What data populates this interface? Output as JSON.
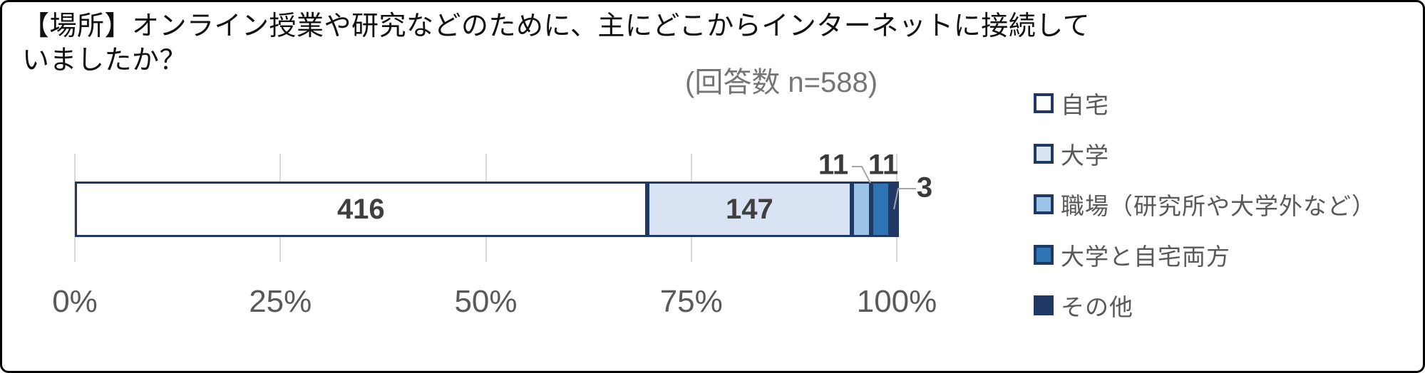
{
  "chart_data": {
    "type": "bar",
    "orientation": "horizontal",
    "stacked": true,
    "percent_axis": true,
    "title": "【場所】オンライン授業や研究などのために、主にどこからインターネットに接続していましたか？",
    "subtitle": "(回答数 n=588)",
    "total": 588,
    "series": [
      {
        "name": "自宅",
        "value": 416,
        "color": "#FFFFFF"
      },
      {
        "name": "大学",
        "value": 147,
        "color": "#DAE3F3"
      },
      {
        "name": "職場（研究所や大学外など）",
        "value": 11,
        "color": "#9DC3E6"
      },
      {
        "name": "大学と自宅両方",
        "value": 11,
        "color": "#2E75B6"
      },
      {
        "name": "その他",
        "value": 3,
        "color": "#1F3864"
      }
    ],
    "x_ticks": [
      "0%",
      "25%",
      "50%",
      "75%",
      "100%"
    ],
    "xlim": [
      0,
      1
    ],
    "grid": true,
    "legend_position": "right",
    "segment_border_color": "#1F3864",
    "leader_line_color": "#A6A6A6"
  }
}
